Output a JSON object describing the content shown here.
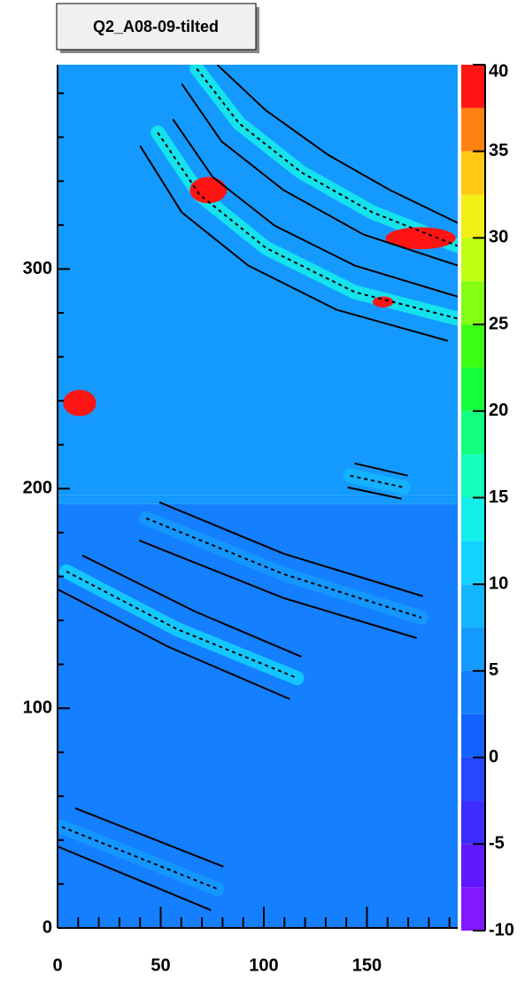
{
  "chart_data": {
    "type": "heatmap",
    "title": "Q2_A08-09-tilted",
    "xlim": [
      0,
      194
    ],
    "ylim": [
      0,
      393
    ],
    "xticks": [
      0,
      50,
      100,
      150
    ],
    "yticks": [
      0,
      100,
      200,
      300
    ],
    "xminorticks": [
      10,
      20,
      30,
      40,
      60,
      70,
      80,
      90,
      110,
      120,
      130,
      140,
      160,
      170,
      180,
      190
    ],
    "yminorticks": [
      20,
      40,
      60,
      80,
      120,
      140,
      160,
      180,
      220,
      240,
      260,
      280,
      320,
      340,
      360,
      380
    ],
    "zlim": [
      -10,
      40
    ],
    "zticks": [
      -10,
      -5,
      0,
      5,
      10,
      15,
      20,
      25,
      30,
      35,
      40
    ],
    "palette": [
      "#8019ff",
      "#5f19ff",
      "#3e2cff",
      "#2447ff",
      "#1463ff",
      "#147fff",
      "#149aff",
      "#14b6ff",
      "#14d2ff",
      "#14eeea",
      "#14ffbc",
      "#14ff82",
      "#14ff3c",
      "#3cff14",
      "#82ff14",
      "#c0ff14",
      "#f0f014",
      "#ffc814",
      "#ff8214",
      "#ff1414"
    ],
    "regions": [
      {
        "y0": 197,
        "y1": 393,
        "value": 5.5
      },
      {
        "y0": 193,
        "y1": 197,
        "value": 7
      },
      {
        "y0": 0,
        "y1": 193,
        "value": 3.5
      }
    ],
    "streaks": [
      {
        "curve": 1,
        "value": 14
      },
      {
        "curve": 4,
        "value": 14
      },
      {
        "curve": 13,
        "value": 11
      },
      {
        "curve": 10,
        "value": 6.5
      },
      {
        "curve": 16,
        "value": 7
      },
      {
        "curve": 7,
        "value": 8
      }
    ],
    "hotspots": [
      {
        "x": 73.1,
        "y": 335.9,
        "rx": 9,
        "ry": 6,
        "value": 40
      },
      {
        "x": 176,
        "y": 314,
        "rx": 17,
        "ry": 5,
        "value": 40
      },
      {
        "x": 157.8,
        "y": 285,
        "rx": 5,
        "ry": 2.5,
        "value": 38
      },
      {
        "x": 10.7,
        "y": 239,
        "rx": 8,
        "ry": 6,
        "value": 40
      }
    ],
    "series": [
      {
        "color": "#000000",
        "style": "solid",
        "x": [
          77.4,
          101,
          131.1,
          161.2,
          194
        ],
        "y": [
          393,
          372.2,
          352,
          335.9,
          321
        ]
      },
      {
        "color": "#000000",
        "style": "dashed",
        "x": [
          67.5,
          88.1,
          118.2,
          152.6,
          194
        ],
        "y": [
          391.2,
          366.2,
          344,
          325.8,
          310.5
        ]
      },
      {
        "color": "#000000",
        "style": "solid",
        "x": [
          60.2,
          79.5,
          109.6,
          148.3,
          194
        ],
        "y": [
          384.3,
          358.1,
          335.9,
          315.7,
          301.6
        ]
      },
      {
        "color": "#000000",
        "style": "solid",
        "x": [
          55.9,
          75.2,
          105.3,
          144,
          194
        ],
        "y": [
          368.2,
          341.9,
          319.7,
          301.6,
          287.4
        ]
      },
      {
        "color": "#000000",
        "style": "dashed",
        "x": [
          48.6,
          68.8,
          101,
          144,
          194
        ],
        "y": [
          362.1,
          333.9,
          309.6,
          289.5,
          277.4
        ]
      },
      {
        "color": "#000000",
        "style": "solid",
        "x": [
          40,
          60.2,
          92.4,
          135.4,
          189.2
        ],
        "y": [
          356.1,
          325.8,
          301.6,
          281.4,
          267.3
        ]
      },
      {
        "color": "#000000",
        "style": "solid",
        "x": [
          144,
          169.8
        ],
        "y": [
          211.5,
          205.9
        ]
      },
      {
        "color": "#000000",
        "style": "dashed",
        "x": [
          141.9,
          167.7
        ],
        "y": [
          205.9,
          200.6
        ]
      },
      {
        "color": "#000000",
        "style": "solid",
        "x": [
          140.6,
          166.8
        ],
        "y": [
          200.6,
          195.4
        ]
      },
      {
        "color": "#000000",
        "style": "solid",
        "x": [
          49.4,
          109.6,
          177.1
        ],
        "y": [
          193.8,
          170.4,
          151
        ]
      },
      {
        "color": "#000000",
        "style": "dashed",
        "x": [
          43,
          109.6,
          176.3
        ],
        "y": [
          186.5,
          161.1,
          141.3
        ]
      },
      {
        "color": "#000000",
        "style": "solid",
        "x": [
          39.6,
          109.6,
          174.1
        ],
        "y": [
          176.4,
          150.2,
          132
        ]
      },
      {
        "color": "#000000",
        "style": "solid",
        "x": [
          12,
          66.6,
          118.2
        ],
        "y": [
          169.6,
          144.1,
          123.5
        ]
      },
      {
        "color": "#000000",
        "style": "dashed",
        "x": [
          4.3,
          58,
          116.1
        ],
        "y": [
          162.3,
          136,
          113.8
        ]
      },
      {
        "color": "#000000",
        "style": "solid",
        "x": [
          0,
          53.7,
          112.6
        ],
        "y": [
          154.2,
          128,
          104.2
        ]
      },
      {
        "color": "#000000",
        "style": "solid",
        "x": [
          8.6,
          80.4
        ],
        "y": [
          54.5,
          27.9
        ]
      },
      {
        "color": "#000000",
        "style": "dashed",
        "x": [
          2.1,
          77.4
        ],
        "y": [
          46,
          17.8
        ]
      },
      {
        "color": "#000000",
        "style": "solid",
        "x": [
          0,
          74.4
        ],
        "y": [
          37.1,
          8.1
        ]
      }
    ]
  }
}
